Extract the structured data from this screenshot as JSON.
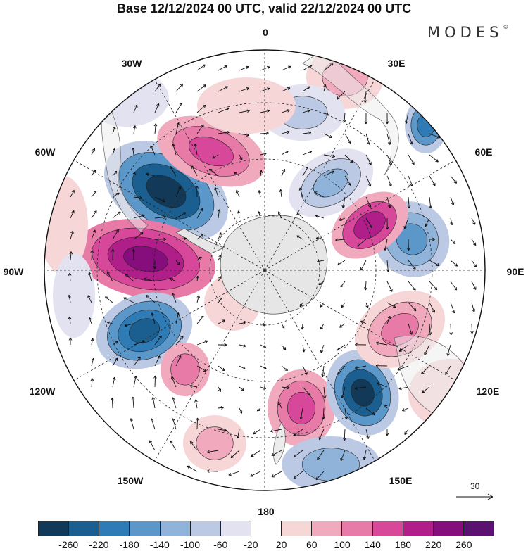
{
  "title": "Base 12/12/2024 00 UTC, valid 22/12/2024 00 UTC",
  "brand": "MODES",
  "brand_mark": "©",
  "longitude_labels": [
    "0",
    "30E",
    "60E",
    "90E",
    "120E",
    "150E",
    "180",
    "150W",
    "120W",
    "90W",
    "60W",
    "30W"
  ],
  "reference_vector": "30",
  "colorbar": {
    "ticks": [
      "-260",
      "-220",
      "-180",
      "-140",
      "-100",
      "-60",
      "-20",
      "20",
      "60",
      "100",
      "140",
      "180",
      "220",
      "260"
    ],
    "colors": [
      "#123a58",
      "#1a5f8f",
      "#2e7bb5",
      "#5b97c8",
      "#8fb3d9",
      "#bcc9e4",
      "#e2e2f0",
      "#ffffff",
      "#f7d6d8",
      "#f0a9bd",
      "#e87aa8",
      "#d8489a",
      "#b01e8a",
      "#860e7c",
      "#5b1170"
    ]
  }
}
